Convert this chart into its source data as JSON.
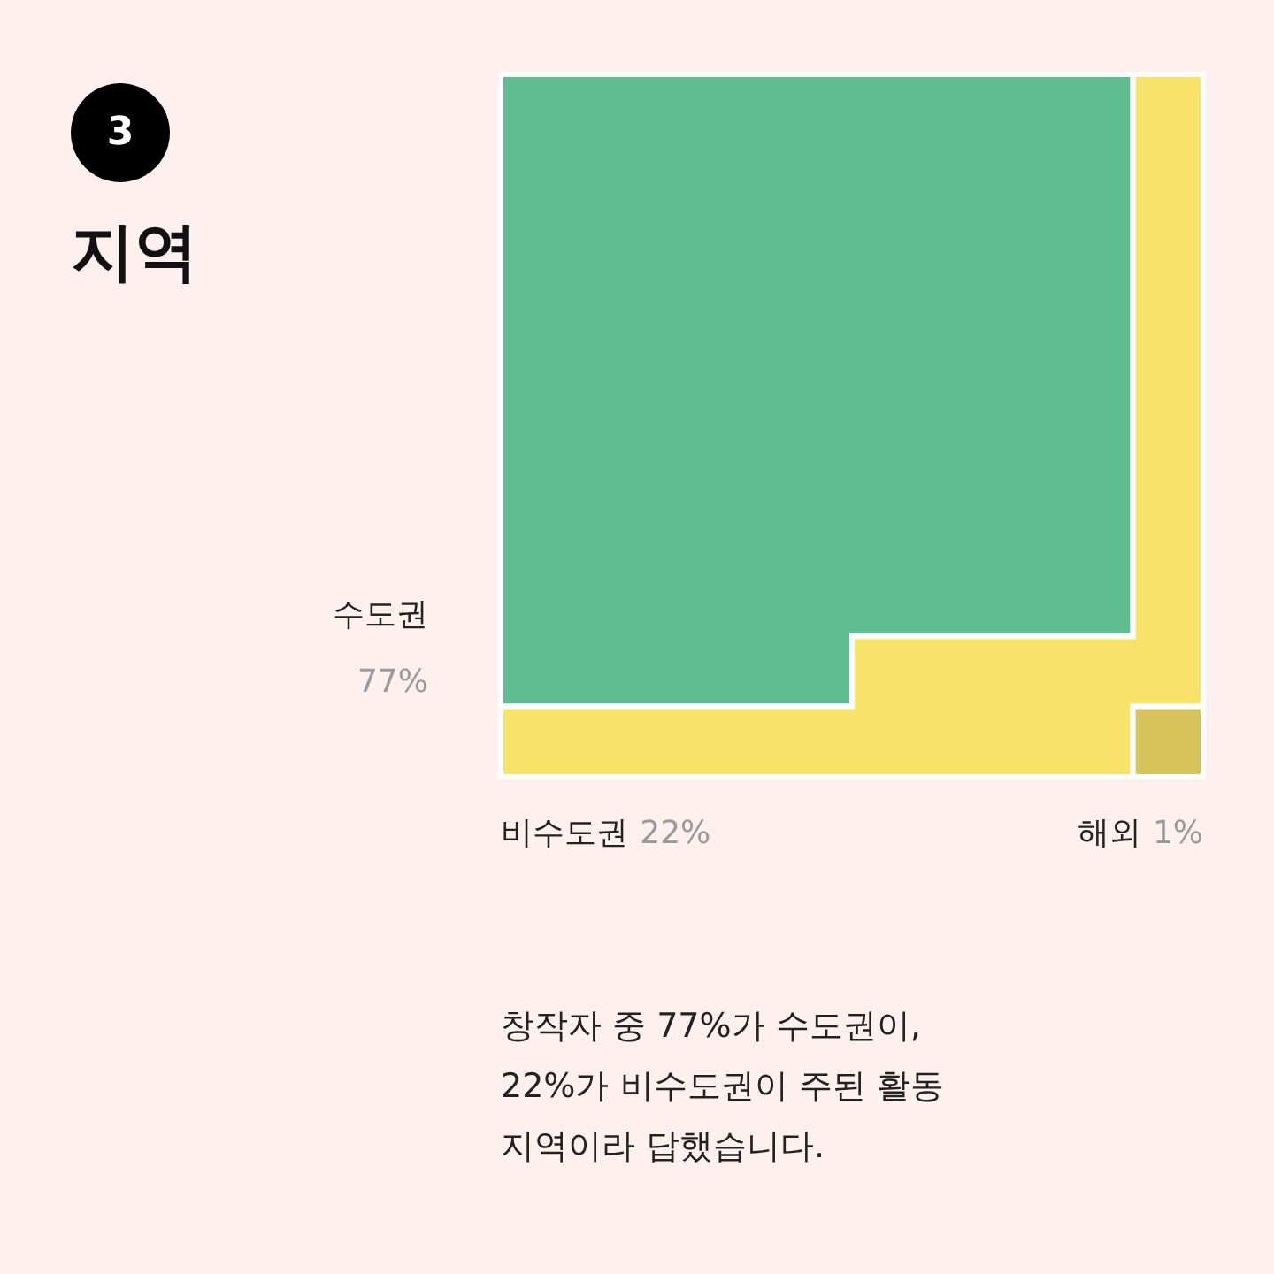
{
  "chart_data": {
    "type": "other",
    "title": "지역",
    "categories": [
      "수도권",
      "비수도권",
      "해외"
    ],
    "values": [
      77,
      22,
      1
    ],
    "value_labels": [
      "77%",
      "22%",
      "1%"
    ],
    "colors": [
      "#5fbd91",
      "#f8e36a",
      "#d6c45a"
    ],
    "annotations": [
      "3",
      "창작자 중 77%가 수도권이,\n22%가 비수도권이 주된 활동\n지역이라 답했습니다."
    ]
  }
}
